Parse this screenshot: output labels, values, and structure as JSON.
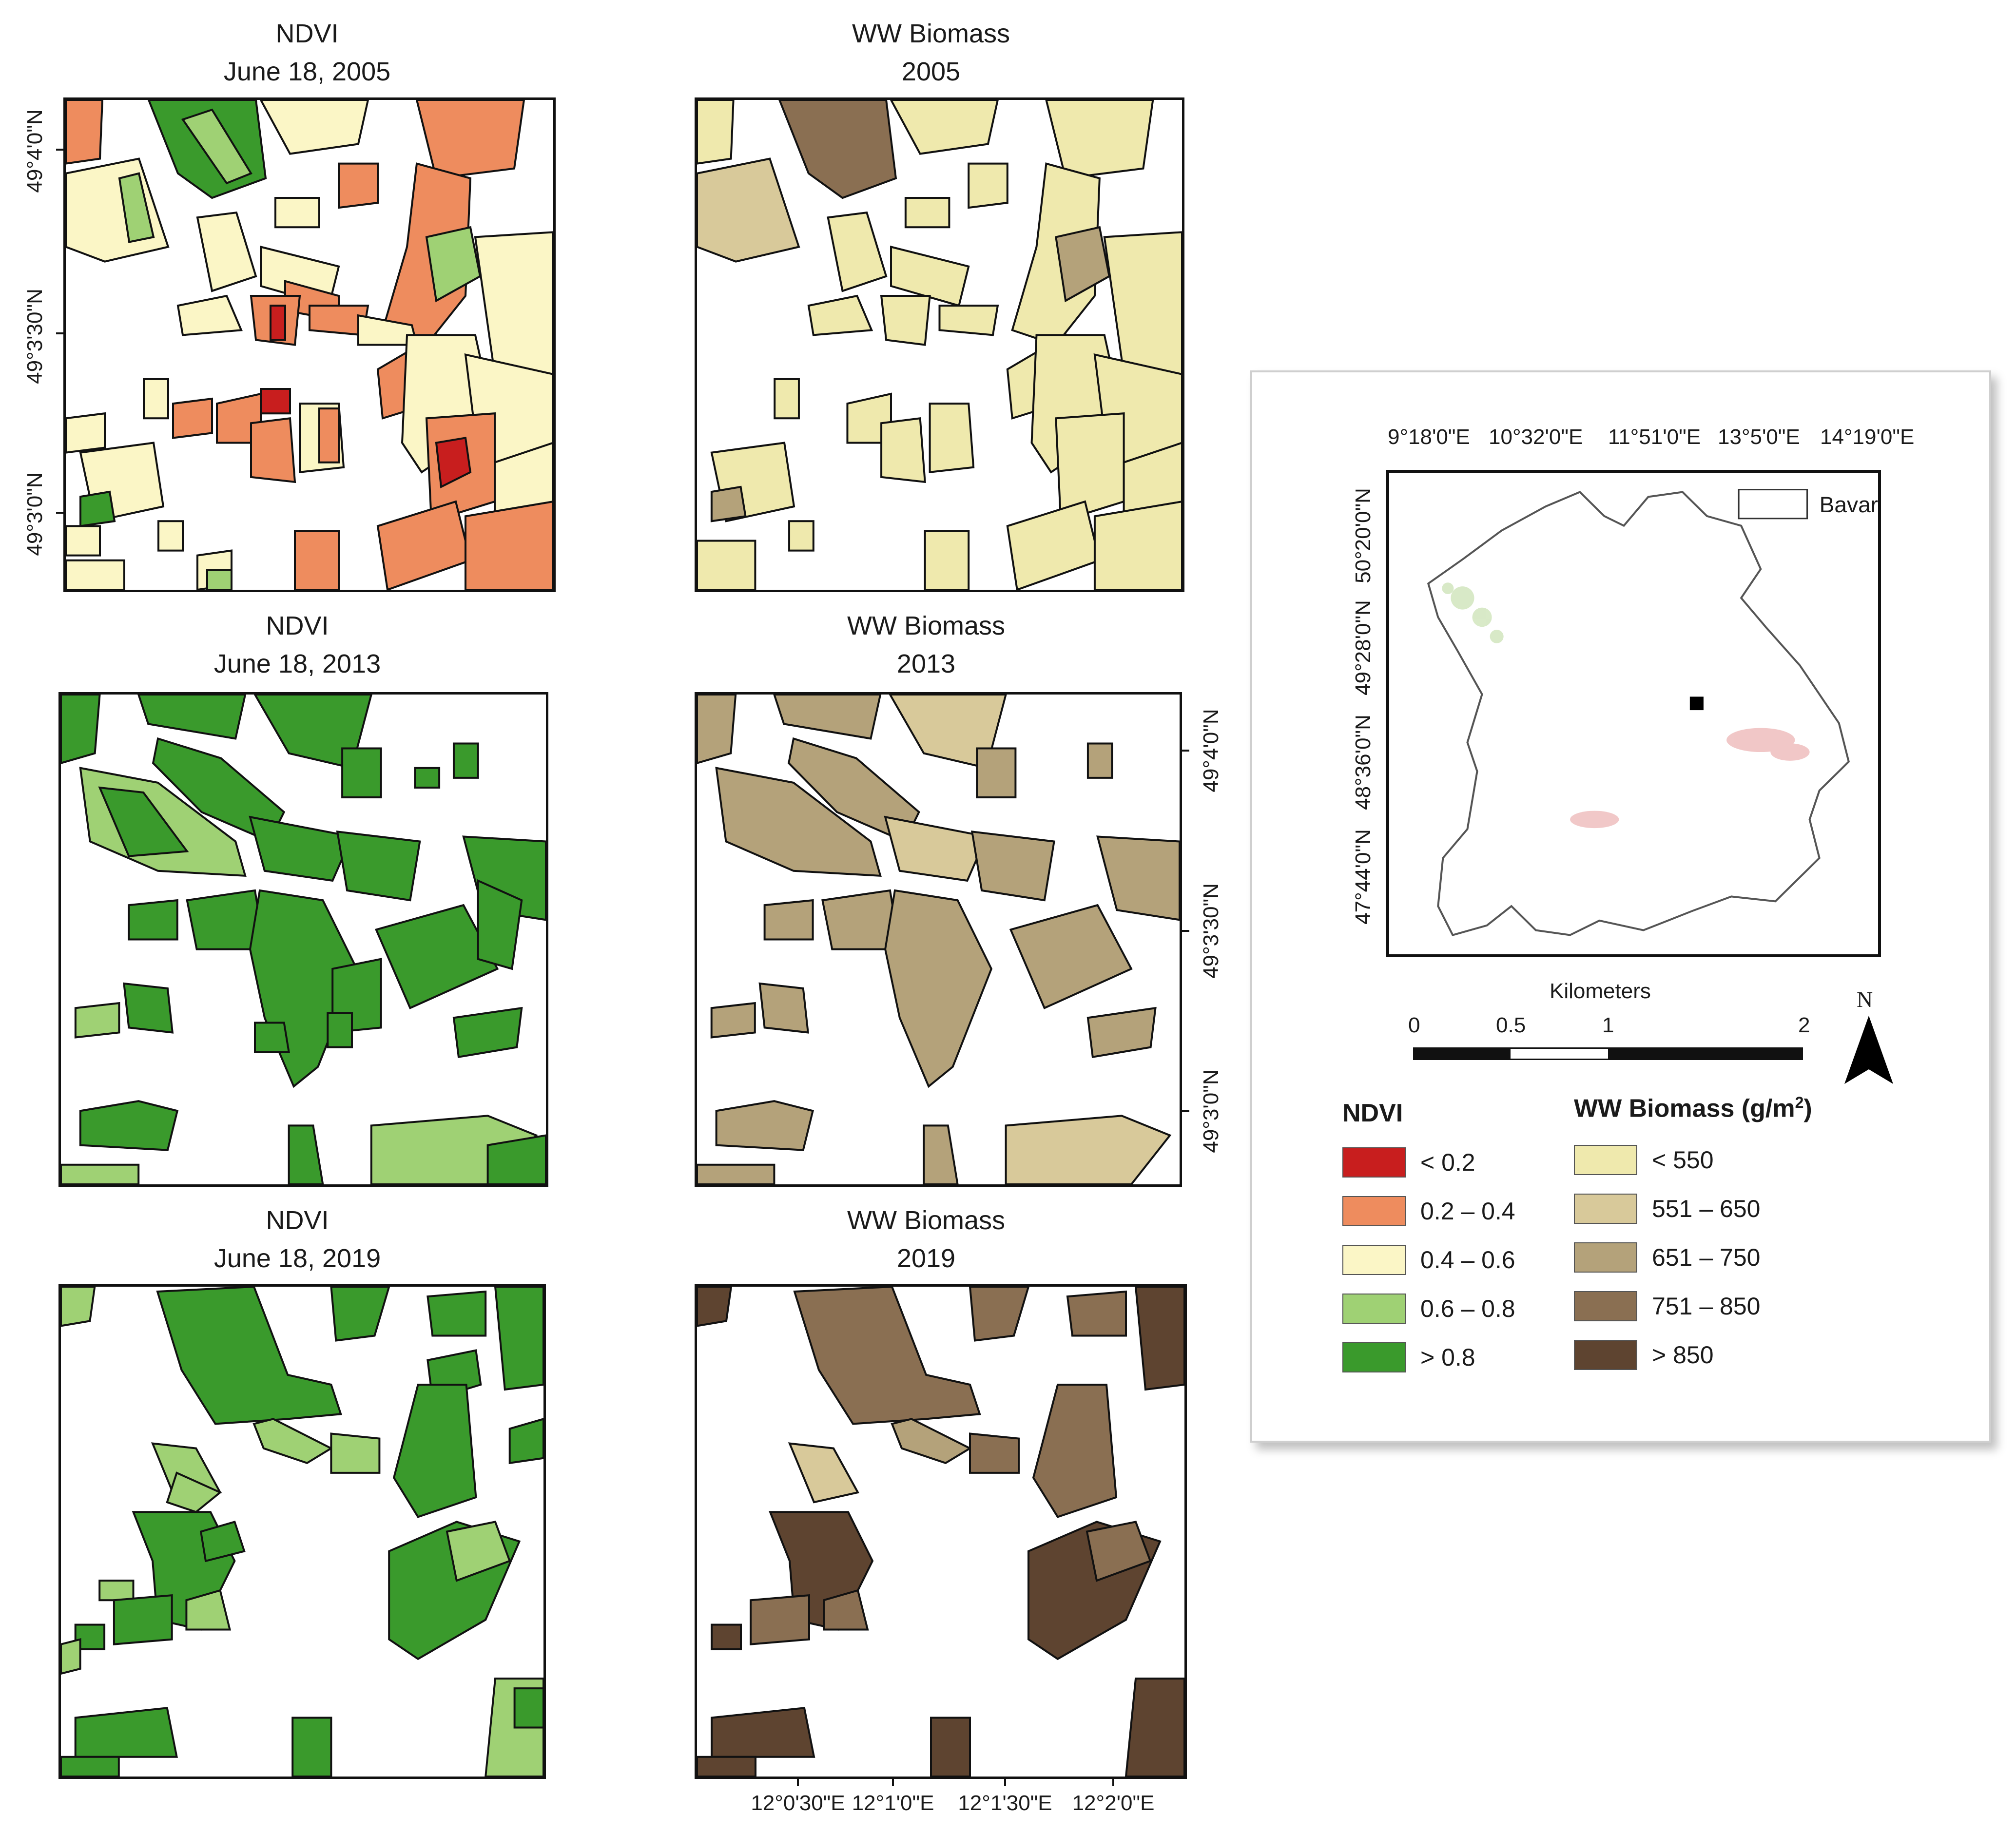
{
  "maps": [
    {
      "id": "ndvi-2005",
      "title_line1": "NDVI",
      "title_line2": "June 18, 2005"
    },
    {
      "id": "biomass-2005",
      "title_line1": "WW Biomass",
      "title_line2": "2005"
    },
    {
      "id": "ndvi-2013",
      "title_line1": "NDVI",
      "title_line2": "June 18, 2013"
    },
    {
      "id": "biomass-2013",
      "title_line1": "WW Biomass",
      "title_line2": "2013"
    },
    {
      "id": "ndvi-2019",
      "title_line1": "NDVI",
      "title_line2": "June 18, 2019"
    },
    {
      "id": "biomass-2019",
      "title_line1": "WW Biomass",
      "title_line2": "2019"
    }
  ],
  "latitude_ticks": [
    "49°4'0\"N",
    "49°3'30\"N",
    "49°3'0\"N"
  ],
  "longitude_ticks": [
    "12°0'30\"E",
    "12°1'0\"E",
    "12°1'30\"E",
    "12°2'0\"E"
  ],
  "inset": {
    "lon_ticks": [
      "9°18'0\"E",
      "10°32'0\"E",
      "11°51'0\"E",
      "13°5'0\"E",
      "14°19'0\"E"
    ],
    "lat_ticks": [
      "50°20'0\"N",
      "49°28'0\"N",
      "48°36'0\"N",
      "47°44'0\"N"
    ],
    "legend_label": "Bavaria"
  },
  "scalebar": {
    "title": "Kilometers",
    "labels": [
      "0",
      "0.5",
      "1",
      "2"
    ],
    "north_label": "N"
  },
  "legend": {
    "ndvi": {
      "heading": "NDVI",
      "classes": [
        {
          "label": "< 0.2",
          "color": "#c81e1e"
        },
        {
          "label": "0.2 – 0.4",
          "color": "#ee8c5e"
        },
        {
          "label": "0.4 – 0.6",
          "color": "#fbf6c6"
        },
        {
          "label": "0.6 – 0.8",
          "color": "#9fd174"
        },
        {
          "label": "> 0.8",
          "color": "#3a9a2c"
        }
      ]
    },
    "biomass": {
      "heading": "WW Biomass (g/m",
      "heading_sup": "2",
      "heading_close": ")",
      "classes": [
        {
          "label": "< 550",
          "color": "#efe9ad"
        },
        {
          "label": "551 – 650",
          "color": "#d8c99a"
        },
        {
          "label": "651 – 750",
          "color": "#b4a27a"
        },
        {
          "label": "751 – 850",
          "color": "#8a6f52"
        },
        {
          "label": "> 850",
          "color": "#5e4430"
        }
      ]
    }
  }
}
